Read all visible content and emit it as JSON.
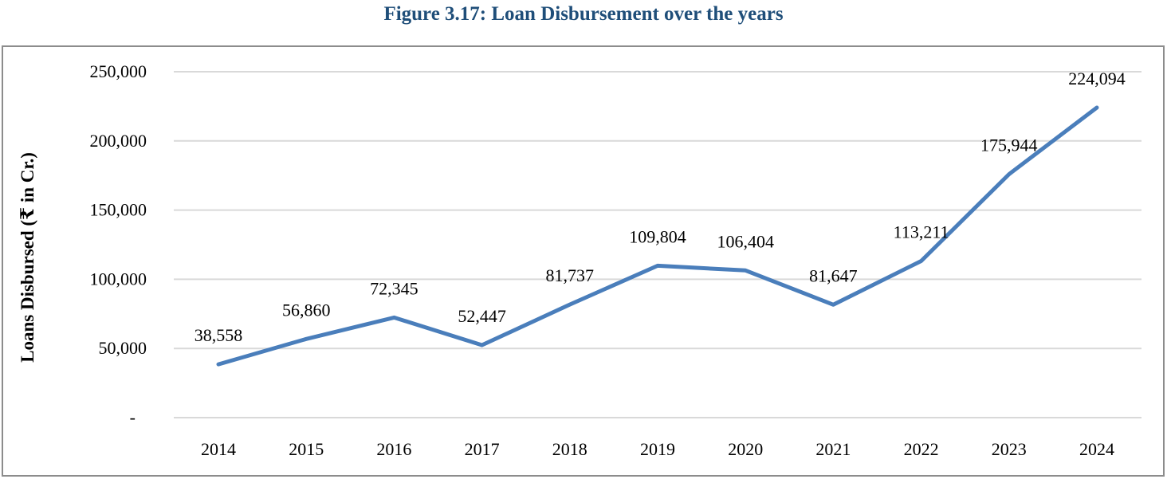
{
  "title": "Figure 3.17: Loan Disbursement over the years",
  "chart_data": {
    "type": "line",
    "ylabel": "Loans Disbursed (₹ in Cr.)",
    "xlabel": "",
    "categories": [
      "2014",
      "2015",
      "2016",
      "2017",
      "2018",
      "2019",
      "2020",
      "2021",
      "2022",
      "2023",
      "2024"
    ],
    "values": [
      38558,
      56860,
      72345,
      52447,
      81737,
      109804,
      106404,
      81647,
      113211,
      175944,
      224094
    ],
    "value_labels": [
      "38,558",
      "56,860",
      "72,345",
      "52,447",
      "81,737",
      "109,804",
      "106,404",
      "81,647",
      "113,211",
      "175,944",
      "224,094"
    ],
    "ylim": [
      0,
      250000
    ],
    "yticks": [
      0,
      50000,
      100000,
      150000,
      200000,
      250000
    ],
    "ytick_labels": [
      "-",
      "50,000",
      "100,000",
      "150,000",
      "200,000",
      "250,000"
    ],
    "grid": true,
    "line_color": "#4a7ebb"
  }
}
